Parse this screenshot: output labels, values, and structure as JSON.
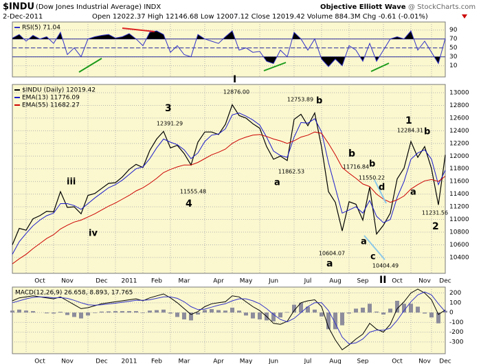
{
  "header": {
    "symbol": "$INDU",
    "name": "(Dow Jones Industrial Average) INDX",
    "date": "2-Dec-2011",
    "quote": "Open 12022.37  High 12146.68  Low 12007.12  Close 12019.42  Volume 884.3M  Chg -0.61 (-0.01%)",
    "brand": "Objective Elliott Wave",
    "source": "@ StockCharts.com"
  },
  "chart_data": [
    {
      "type": "line",
      "ylim": [
        -15,
        108
      ],
      "yticks": [
        10,
        30,
        50,
        70,
        90
      ],
      "grid": true,
      "legend": true,
      "bands": {
        "upper": 70,
        "lower": 30,
        "mid": 50
      },
      "band_color": "#2b2b9e",
      "extreme_fill": "#000000",
      "series": [
        {
          "name": "RSI(5) 71.04",
          "color": "#3232c8",
          "values": [
            72,
            80,
            65,
            78,
            70,
            75,
            60,
            85,
            35,
            50,
            30,
            70,
            75,
            78,
            80,
            72,
            75,
            82,
            70,
            55,
            85,
            88,
            80,
            40,
            55,
            35,
            30,
            80,
            70,
            65,
            60,
            75,
            88,
            45,
            50,
            40,
            42,
            20,
            15,
            45,
            30,
            85,
            70,
            45,
            70,
            25,
            8,
            25,
            10,
            55,
            45,
            20,
            60,
            20,
            45,
            70,
            75,
            70,
            88,
            45,
            65,
            40,
            15,
            71.04
          ]
        }
      ]
    },
    {
      "type": "line",
      "ylim": [
        10150,
        13130
      ],
      "yticks": [
        10400,
        10600,
        10800,
        11000,
        11200,
        11400,
        11600,
        11800,
        12000,
        12200,
        12400,
        12600,
        12800,
        13000
      ],
      "grid": true,
      "legend": true,
      "categories": [
        null,
        null,
        null,
        null,
        "Oct",
        null,
        null,
        null,
        "Nov",
        null,
        null,
        null,
        null,
        "Dec",
        null,
        null,
        null,
        "2011",
        null,
        null,
        null,
        "Feb",
        null,
        null,
        null,
        "Mar",
        null,
        null,
        null,
        null,
        "Apr",
        null,
        null,
        null,
        "May",
        null,
        null,
        null,
        "Jun",
        null,
        null,
        null,
        null,
        "Jul",
        null,
        null,
        null,
        "Aug",
        null,
        null,
        null,
        "Sep",
        null,
        null,
        null,
        null,
        "Oct",
        null,
        null,
        null,
        "Nov",
        null,
        null,
        "Dec"
      ],
      "series": [
        {
          "name": "$INDU (Daily) 12019.42",
          "color": "#000000",
          "values": [
            10600,
            10860,
            10830,
            11010,
            11060,
            11130,
            11120,
            11440,
            11190,
            11200,
            11090,
            11380,
            11410,
            11490,
            11570,
            11580,
            11670,
            11790,
            11870,
            11820,
            12090,
            12270,
            12390,
            12130,
            12170,
            12040,
            11860,
            12220,
            12380,
            12380,
            12340,
            12500,
            12810,
            12640,
            12600,
            12510,
            12440,
            12150,
            11950,
            12000,
            11930,
            12580,
            12660,
            12480,
            12680,
            12140,
            11440,
            11270,
            10820,
            11280,
            11240,
            10990,
            11510,
            10770,
            10910,
            11100,
            11640,
            11810,
            12230,
            11980,
            12150,
            11800,
            11230,
            12019.42
          ]
        },
        {
          "name": "EMA(13) 11776.09",
          "color": "#1a1acc",
          "values": [
            10450,
            10650,
            10780,
            10900,
            10990,
            11060,
            11100,
            11250,
            11250,
            11220,
            11160,
            11250,
            11340,
            11420,
            11500,
            11550,
            11620,
            11710,
            11800,
            11830,
            11960,
            12130,
            12270,
            12220,
            12180,
            12100,
            11960,
            12050,
            12230,
            12330,
            12350,
            12430,
            12650,
            12680,
            12630,
            12570,
            12490,
            12300,
            12080,
            12010,
            11980,
            12300,
            12530,
            12520,
            12590,
            12380,
            11900,
            11500,
            11100,
            11150,
            11200,
            11100,
            11300,
            11050,
            10950,
            11000,
            11350,
            11600,
            11950,
            12050,
            12100,
            11950,
            11550,
            11776.09
          ]
        },
        {
          "name": "EMA(55) 11682.27",
          "color": "#cc0000",
          "values": [
            10300,
            10380,
            10450,
            10540,
            10620,
            10700,
            10760,
            10850,
            10910,
            10960,
            10990,
            11040,
            11090,
            11150,
            11210,
            11260,
            11320,
            11380,
            11450,
            11500,
            11570,
            11650,
            11740,
            11790,
            11830,
            11860,
            11860,
            11900,
            11960,
            12020,
            12060,
            12110,
            12200,
            12260,
            12300,
            12330,
            12340,
            12310,
            12270,
            12240,
            12200,
            12240,
            12300,
            12330,
            12380,
            12360,
            12200,
            12020,
            11820,
            11730,
            11650,
            11560,
            11520,
            11400,
            11320,
            11270,
            11310,
            11370,
            11480,
            11550,
            11610,
            11630,
            11600,
            11682.27
          ]
        }
      ],
      "annotations": [
        {
          "text": "3",
          "color": "#000000"
        },
        {
          "text": "4",
          "color": "#000000"
        },
        {
          "text": "iii",
          "color": "#6a1a6a"
        },
        {
          "text": "iv",
          "color": "#6a1a6a"
        },
        {
          "text": "I",
          "color": "#1a1acc"
        },
        {
          "text": "b",
          "color": "#6a1a6a"
        },
        {
          "text": "a",
          "color": "#6a1a6a"
        },
        {
          "text": "b",
          "color": "#000000"
        },
        {
          "text": "a",
          "color": "#000000"
        },
        {
          "text": "b",
          "color": "#6a1a6a"
        },
        {
          "text": "d",
          "color": "#6a1a6a"
        },
        {
          "text": "a",
          "color": "#6a1a6a"
        },
        {
          "text": "c",
          "color": "#6a1a6a"
        },
        {
          "text": "1",
          "color": "#000000"
        },
        {
          "text": "b",
          "color": "#6a1a6a"
        },
        {
          "text": "a",
          "color": "#6a1a6a"
        },
        {
          "text": "2",
          "color": "#1a8a1a"
        },
        {
          "text": "II",
          "color": "#1a1acc"
        },
        {
          "text": "12876.00",
          "color": "#000000"
        },
        {
          "text": "12391.29",
          "color": "#000000"
        },
        {
          "text": "11555.48",
          "color": "#000000"
        },
        {
          "text": "12753.89",
          "color": "#000000"
        },
        {
          "text": "11862.53",
          "color": "#000000"
        },
        {
          "text": "11716.84",
          "color": "#000000"
        },
        {
          "text": "11550.22",
          "color": "#000000"
        },
        {
          "text": "10604.07",
          "color": "#000000"
        },
        {
          "text": "10404.49",
          "color": "#000000"
        },
        {
          "text": "12284.31",
          "color": "#000000"
        },
        {
          "text": "11231.56",
          "color": "#000000"
        }
      ]
    },
    {
      "type": "line",
      "title": "MACD(12,26,9) 26.658, 8.893, 17.765",
      "ylim": [
        -420,
        260
      ],
      "yticks": [
        -300,
        -200,
        -100,
        0,
        100,
        200
      ],
      "grid": true,
      "categories": [
        null,
        null,
        null,
        null,
        "Oct",
        null,
        null,
        null,
        "Nov",
        null,
        null,
        null,
        null,
        "Dec",
        null,
        null,
        null,
        "2011",
        null,
        null,
        null,
        "Feb",
        null,
        null,
        null,
        "Mar",
        null,
        null,
        null,
        null,
        "Apr",
        null,
        null,
        null,
        "May",
        null,
        null,
        null,
        "Jun",
        null,
        null,
        null,
        null,
        "Jul",
        null,
        null,
        null,
        "Aug",
        null,
        null,
        null,
        "Sep",
        null,
        null,
        null,
        null,
        "Oct",
        null,
        null,
        null,
        "Nov",
        null,
        null,
        "Dec"
      ],
      "series": [
        {
          "style": "histogram",
          "color": "#8c8c9c",
          "values": [
            20,
            30,
            20,
            15,
            0,
            -8,
            -10,
            8,
            -25,
            -45,
            -60,
            -30,
            -5,
            10,
            12,
            15,
            15,
            15,
            15,
            -5,
            20,
            25,
            30,
            -10,
            -45,
            -70,
            -80,
            -20,
            25,
            35,
            25,
            20,
            50,
            20,
            -30,
            -60,
            -70,
            -80,
            -90,
            -50,
            5,
            80,
            100,
            60,
            30,
            -40,
            -170,
            -170,
            -130,
            -10,
            40,
            50,
            90,
            10,
            -20,
            40,
            120,
            90,
            90,
            60,
            -10,
            -50,
            -110,
            17.765
          ]
        },
        {
          "color": "#000000",
          "values": [
            120,
            150,
            160,
            170,
            160,
            150,
            140,
            160,
            120,
            80,
            40,
            50,
            70,
            90,
            100,
            110,
            120,
            130,
            140,
            120,
            150,
            170,
            190,
            150,
            100,
            40,
            -20,
            10,
            60,
            90,
            100,
            110,
            170,
            160,
            110,
            60,
            20,
            -40,
            -110,
            -120,
            -90,
            20,
            100,
            120,
            130,
            60,
            -150,
            -280,
            -380,
            -330,
            -270,
            -220,
            -110,
            -170,
            -200,
            -120,
            40,
            110,
            200,
            240,
            200,
            130,
            -20,
            26.658
          ]
        },
        {
          "color": "#3232c8",
          "values": [
            100,
            120,
            140,
            155,
            160,
            158,
            150,
            152,
            145,
            125,
            100,
            80,
            75,
            80,
            88,
            95,
            105,
            115,
            125,
            125,
            130,
            145,
            160,
            160,
            145,
            110,
            60,
            30,
            35,
            55,
            75,
            90,
            120,
            140,
            140,
            120,
            90,
            40,
            -20,
            -70,
            -95,
            -60,
            0,
            60,
            100,
            100,
            20,
            -110,
            -250,
            -320,
            -310,
            -270,
            -200,
            -180,
            -180,
            -160,
            -80,
            20,
            110,
            180,
            210,
            180,
            90,
            8.893
          ]
        }
      ]
    }
  ]
}
